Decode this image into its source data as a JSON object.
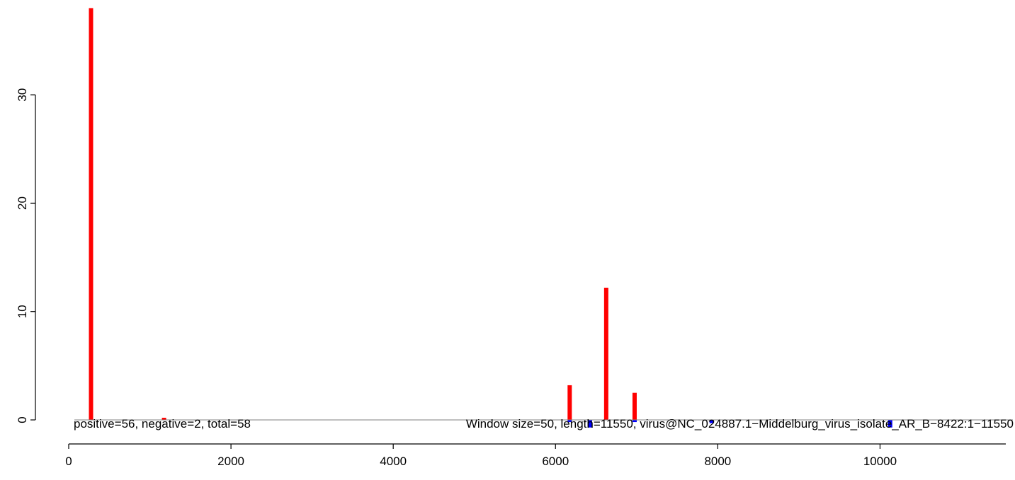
{
  "chart_data": {
    "type": "bar",
    "title": "",
    "xlabel": "",
    "ylabel": "",
    "xlim": [
      0,
      11550
    ],
    "ylim": [
      -1,
      38
    ],
    "x_ticks": [
      0,
      2000,
      4000,
      6000,
      8000,
      10000
    ],
    "x_tick_labels": [
      "0",
      "2000",
      "4000",
      "6000",
      "8000",
      "10000"
    ],
    "y_ticks": [
      0,
      10,
      20,
      30
    ],
    "y_tick_labels": [
      "0",
      "10",
      "20",
      "30"
    ],
    "grid": false,
    "legend": false,
    "series": [
      {
        "color": "#ff0000",
        "x": [
          275,
          1175,
          6175,
          6625,
          6975
        ],
        "values": [
          38.0,
          0.2,
          3.2,
          12.2,
          2.5
        ]
      },
      {
        "color": "#0000ff",
        "x": [
          6175,
          6425,
          6975,
          7925,
          10125
        ],
        "values": [
          -0.2,
          -0.7,
          -0.2,
          -0.3,
          -0.7
        ]
      }
    ],
    "annotations": {
      "counts": "positive=56, negative=2, total=58",
      "info": "Window size=50, length=11550, virus@NC_024887.1−Middelburg_virus_isolate_AR_B−8422:1−11550"
    }
  }
}
